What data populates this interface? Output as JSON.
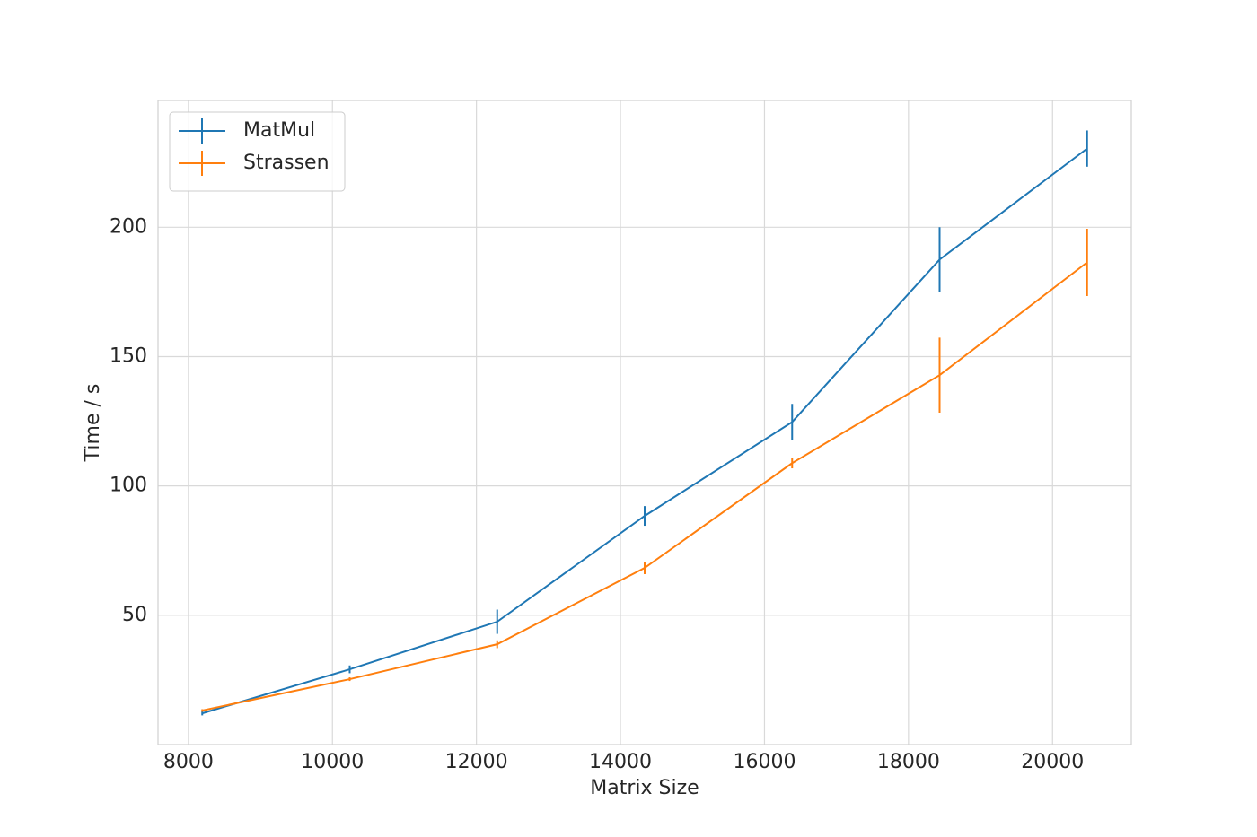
{
  "chart_data": {
    "type": "line",
    "xlabel": "Matrix Size",
    "ylabel": "Time / s",
    "x": [
      8192,
      10240,
      12288,
      14336,
      16384,
      18432,
      20480
    ],
    "series": [
      {
        "name": "MatMul",
        "color": "#1f77b4",
        "values": [
          12.1,
          29.1,
          47.5,
          88.4,
          124.7,
          187.5,
          230.4
        ],
        "errors": [
          0.8,
          1.5,
          4.7,
          3.8,
          7,
          12.5,
          7
        ]
      },
      {
        "name": "Strassen",
        "color": "#ff7f0e",
        "values": [
          13.2,
          25.3,
          38.8,
          68.3,
          108.8,
          142.8,
          186.4
        ],
        "errors": [
          0.5,
          0.7,
          1.5,
          2.4,
          2,
          14.5,
          13
        ]
      }
    ],
    "xlim": [
      7578,
      21094
    ],
    "ylim": [
      0,
      249
    ],
    "xticks": [
      8000,
      10000,
      12000,
      14000,
      16000,
      18000,
      20000
    ],
    "yticks": [
      50,
      100,
      150,
      200
    ],
    "grid": true,
    "legend": "upper-left"
  }
}
